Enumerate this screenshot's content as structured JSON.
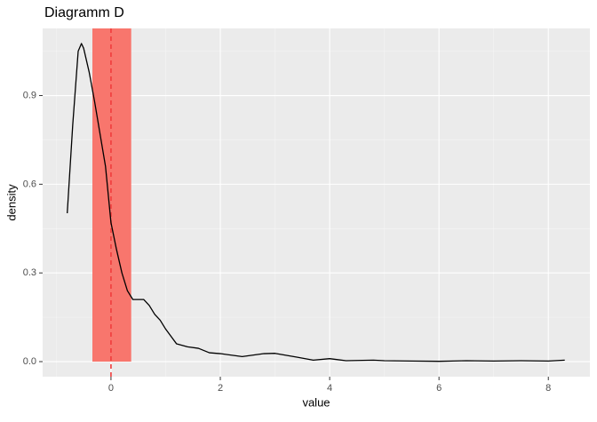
{
  "chart_data": {
    "type": "density",
    "title": "Diagramm D",
    "xlabel": "value",
    "ylabel": "density",
    "x": [
      -0.8,
      -0.7,
      -0.6,
      -0.54,
      -0.5,
      -0.4,
      -0.3,
      -0.2,
      -0.1,
      0,
      0.1,
      0.2,
      0.3,
      0.4,
      0.5,
      0.6,
      0.7,
      0.8,
      0.9,
      1.0,
      1.2,
      1.4,
      1.6,
      1.8,
      2.0,
      2.4,
      2.8,
      3.0,
      3.4,
      3.7,
      4.0,
      4.3,
      4.8,
      5.0,
      5.5,
      6.0,
      6.5,
      7.0,
      7.5,
      8.0,
      8.3
    ],
    "values": [
      0.502,
      0.8,
      1.05,
      1.076,
      1.06,
      0.98,
      0.88,
      0.77,
      0.66,
      0.47,
      0.38,
      0.3,
      0.24,
      0.21,
      0.21,
      0.21,
      0.19,
      0.16,
      0.14,
      0.11,
      0.06,
      0.05,
      0.045,
      0.03,
      0.027,
      0.017,
      0.027,
      0.028,
      0.015,
      0.005,
      0.01,
      0.003,
      0.005,
      0.003,
      0.002,
      0.001,
      0.003,
      0.002,
      0.003,
      0.002,
      0.005
    ],
    "color": "#000000",
    "shade": [
      -0.34,
      0.37
    ],
    "shade_color": "#f8766d",
    "vline": 0,
    "vline_color": "#f03c3c",
    "xlim": [
      -1.25,
      8.76
    ],
    "ylim": [
      -0.051,
      1.127
    ],
    "xticks": [
      0,
      2,
      4,
      6,
      8
    ],
    "yticks": [
      {
        "value": 0,
        "label": "0.0"
      },
      0.3,
      0.6,
      0.9
    ],
    "x_minor_ticks": [
      -1,
      1,
      3,
      5,
      7
    ],
    "y_minor_ticks": [
      0.15,
      0.45,
      0.75,
      1.05
    ],
    "grid": true
  }
}
